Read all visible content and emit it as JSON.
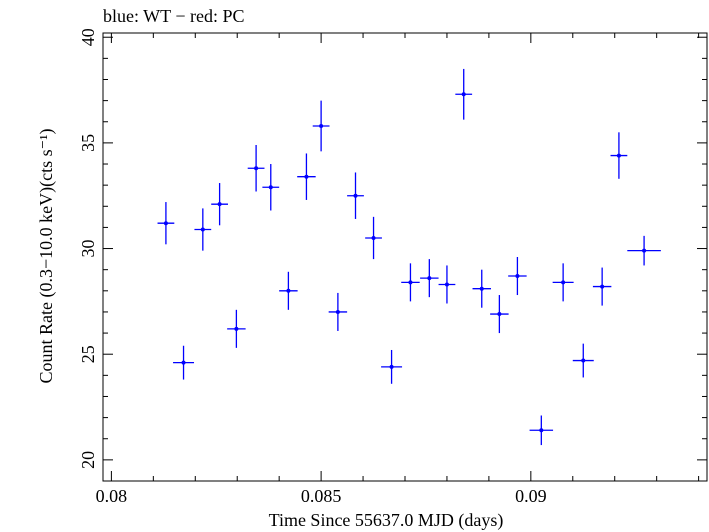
{
  "header": {
    "legend_text": "blue: WT − red: PC"
  },
  "colors": {
    "wt": "#0000ff",
    "pc": "#ff0000",
    "axis": "#000000"
  },
  "chart_data": {
    "type": "scatter",
    "title": "",
    "legend_text": "blue: WT − red: PC",
    "xlabel": "Time Since 55637.0 MJD (days)",
    "ylabel": "Count Rate (0.3−10.0 keV)(cts s⁻¹)",
    "xlim": [
      0.0798,
      0.0942
    ],
    "ylim": [
      19.0,
      40.2
    ],
    "x_ticks": [
      0.08,
      0.085,
      0.09
    ],
    "x_tick_labels": [
      "0.08",
      "0.085",
      "0.09"
    ],
    "y_ticks": [
      20,
      25,
      30,
      35,
      40
    ],
    "y_tick_labels": [
      "20",
      "25",
      "30",
      "35",
      "40"
    ],
    "grid": false,
    "series": [
      {
        "name": "WT",
        "color": "#0000ff",
        "points": [
          {
            "x": 0.0813,
            "xerr": 0.0002,
            "y": 31.2,
            "yerr": 1.0
          },
          {
            "x": 0.08172,
            "xerr": 0.00025,
            "y": 24.6,
            "yerr": 0.8
          },
          {
            "x": 0.08218,
            "xerr": 0.0002,
            "y": 30.9,
            "yerr": 1.0
          },
          {
            "x": 0.08258,
            "xerr": 0.0002,
            "y": 32.1,
            "yerr": 1.0
          },
          {
            "x": 0.08298,
            "xerr": 0.00022,
            "y": 26.2,
            "yerr": 0.9
          },
          {
            "x": 0.08345,
            "xerr": 0.0002,
            "y": 33.8,
            "yerr": 1.1
          },
          {
            "x": 0.0838,
            "xerr": 0.0002,
            "y": 32.9,
            "yerr": 1.1
          },
          {
            "x": 0.08422,
            "xerr": 0.00022,
            "y": 28.0,
            "yerr": 0.9
          },
          {
            "x": 0.08465,
            "xerr": 0.00022,
            "y": 33.4,
            "yerr": 1.1
          },
          {
            "x": 0.085,
            "xerr": 0.0002,
            "y": 35.8,
            "yerr": 1.2
          },
          {
            "x": 0.0854,
            "xerr": 0.00022,
            "y": 27.0,
            "yerr": 0.9
          },
          {
            "x": 0.08582,
            "xerr": 0.0002,
            "y": 32.5,
            "yerr": 1.1
          },
          {
            "x": 0.08625,
            "xerr": 0.0002,
            "y": 30.5,
            "yerr": 1.0
          },
          {
            "x": 0.08668,
            "xerr": 0.00025,
            "y": 24.4,
            "yerr": 0.8
          },
          {
            "x": 0.08713,
            "xerr": 0.00022,
            "y": 28.4,
            "yerr": 0.9
          },
          {
            "x": 0.08758,
            "xerr": 0.00022,
            "y": 28.6,
            "yerr": 0.9
          },
          {
            "x": 0.088,
            "xerr": 0.0002,
            "y": 28.3,
            "yerr": 0.9
          },
          {
            "x": 0.0884,
            "xerr": 0.0002,
            "y": 37.3,
            "yerr": 1.2
          },
          {
            "x": 0.08883,
            "xerr": 0.00022,
            "y": 28.1,
            "yerr": 0.9
          },
          {
            "x": 0.08925,
            "xerr": 0.00022,
            "y": 26.9,
            "yerr": 0.9
          },
          {
            "x": 0.08968,
            "xerr": 0.00022,
            "y": 28.7,
            "yerr": 0.9
          },
          {
            "x": 0.09025,
            "xerr": 0.00028,
            "y": 21.4,
            "yerr": 0.7
          },
          {
            "x": 0.09077,
            "xerr": 0.00025,
            "y": 28.4,
            "yerr": 0.9
          },
          {
            "x": 0.09125,
            "xerr": 0.00025,
            "y": 24.7,
            "yerr": 0.8
          },
          {
            "x": 0.0917,
            "xerr": 0.00022,
            "y": 28.2,
            "yerr": 0.9
          },
          {
            "x": 0.0921,
            "xerr": 0.0002,
            "y": 34.4,
            "yerr": 1.1
          },
          {
            "x": 0.0927,
            "xerr": 0.0004,
            "y": 29.9,
            "yerr": 0.7
          }
        ]
      }
    ]
  }
}
